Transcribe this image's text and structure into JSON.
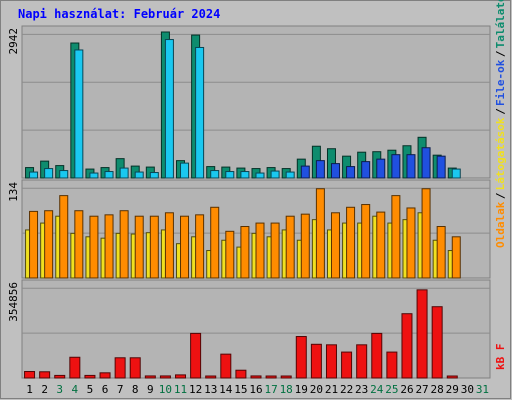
{
  "title": "Napi használat: Február 2024",
  "colors": {
    "page_bg": "#c0c0c0",
    "panel_bg": "#b4b4b4",
    "title": "#0000ff",
    "hits": "#0e8c6e",
    "files": "#1ac8f0",
    "files_mid": "#2050e0",
    "pages": "#f0e020",
    "visits": "#ff8c00",
    "kb": "#ee1111",
    "weekend": "#007040",
    "axis_text": "#000000"
  },
  "legend": {
    "hits": "Találatok",
    "files": "File-ok",
    "pages": "Látogatások",
    "visits": "Oldalak",
    "kb": "kB F",
    "sep": "/"
  },
  "chart_data": [
    {
      "type": "bar",
      "panel": "top",
      "y_max_label": "2942",
      "ylim": [
        0,
        2942
      ],
      "categories": [
        "1",
        "2",
        "3",
        "4",
        "5",
        "6",
        "7",
        "8",
        "9",
        "10",
        "11",
        "12",
        "13",
        "14",
        "15",
        "16",
        "17",
        "18",
        "19",
        "20",
        "21",
        "22",
        "23",
        "24",
        "25",
        "26",
        "27",
        "28",
        "29",
        "30",
        "31"
      ],
      "series": [
        {
          "name": "Találatok",
          "values": [
            210,
            340,
            250,
            2720,
            180,
            210,
            390,
            240,
            220,
            2942,
            350,
            2880,
            230,
            220,
            200,
            190,
            210,
            190,
            380,
            640,
            590,
            440,
            520,
            530,
            560,
            650,
            820,
            460,
            200,
            0,
            0
          ]
        },
        {
          "name": "File-ok",
          "values": [
            120,
            190,
            150,
            2580,
            100,
            130,
            200,
            120,
            110,
            2790,
            300,
            2630,
            150,
            130,
            130,
            100,
            140,
            120,
            240,
            350,
            290,
            230,
            330,
            380,
            470,
            470,
            610,
            440,
            180,
            0,
            0
          ]
        }
      ]
    },
    {
      "type": "bar",
      "panel": "middle",
      "y_max_label": "134",
      "ylim": [
        0,
        134
      ],
      "categories": [
        "1",
        "2",
        "3",
        "4",
        "5",
        "6",
        "7",
        "8",
        "9",
        "10",
        "11",
        "12",
        "13",
        "14",
        "15",
        "16",
        "17",
        "18",
        "19",
        "20",
        "21",
        "22",
        "23",
        "24",
        "25",
        "26",
        "27",
        "28",
        "29",
        "30",
        "31"
      ],
      "series": [
        {
          "name": "Látogatások",
          "values": [
            70,
            80,
            90,
            65,
            60,
            58,
            65,
            64,
            66,
            70,
            50,
            60,
            40,
            55,
            45,
            65,
            60,
            70,
            55,
            85,
            70,
            80,
            80,
            90,
            80,
            85,
            95,
            55,
            40,
            0,
            0
          ]
        },
        {
          "name": "Oldalak",
          "values": [
            97,
            98,
            120,
            98,
            90,
            92,
            98,
            90,
            90,
            95,
            90,
            92,
            103,
            68,
            75,
            80,
            80,
            90,
            93,
            130,
            95,
            103,
            107,
            96,
            120,
            102,
            130,
            75,
            60,
            0,
            0
          ]
        }
      ]
    },
    {
      "type": "bar",
      "panel": "bottom",
      "y_max_label": "354856",
      "ylim": [
        0,
        354856
      ],
      "categories": [
        "1",
        "2",
        "3",
        "4",
        "5",
        "6",
        "7",
        "8",
        "9",
        "10",
        "11",
        "12",
        "13",
        "14",
        "15",
        "16",
        "17",
        "18",
        "19",
        "20",
        "21",
        "22",
        "23",
        "24",
        "25",
        "26",
        "27",
        "28",
        "29",
        "30",
        "31"
      ],
      "series": [
        {
          "name": "kB F",
          "values": [
            25000,
            24000,
            10000,
            80000,
            10000,
            20000,
            78000,
            78000,
            8000,
            8000,
            12000,
            172000,
            6000,
            92000,
            30000,
            8000,
            6000,
            4000,
            160000,
            130000,
            128000,
            100000,
            128000,
            172000,
            100000,
            248000,
            340000,
            275000,
            6000,
            0,
            0
          ]
        }
      ]
    }
  ],
  "x_labels": [
    "1",
    "2",
    "3",
    "4",
    "5",
    "6",
    "7",
    "8",
    "9",
    "10",
    "11",
    "12",
    "13",
    "14",
    "15",
    "16",
    "17",
    "18",
    "19",
    "20",
    "21",
    "22",
    "23",
    "24",
    "25",
    "26",
    "27",
    "28",
    "29",
    "30",
    "31"
  ],
  "weekend_days": [
    "3",
    "4",
    "10",
    "11",
    "17",
    "18",
    "24",
    "25",
    "31"
  ]
}
